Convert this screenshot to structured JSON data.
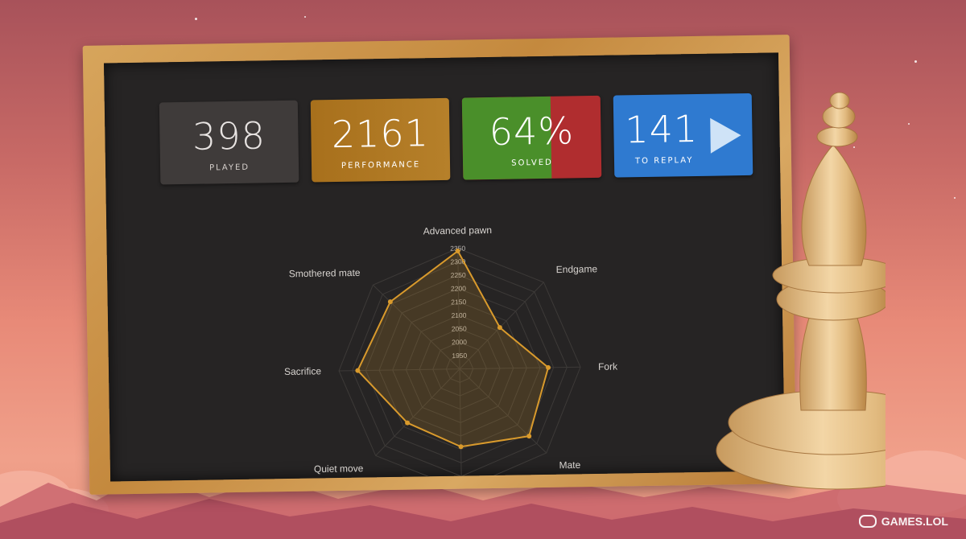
{
  "stats": {
    "played": {
      "value": "398",
      "label": "PLAYED"
    },
    "performance": {
      "value": "2161",
      "label": "PERFORMANCE"
    },
    "solved": {
      "value": "64%",
      "label": "SOLVED",
      "fraction": 0.64
    },
    "replay": {
      "value": "141",
      "label": "TO REPLAY"
    }
  },
  "colors": {
    "played_bg": "#3f3b3a",
    "performance_bg": "#b07828",
    "solved_good": "#4a8f2a",
    "solved_bad": "#b02d2f",
    "replay_bg": "#2f7ad0",
    "radar_line": "#d99a2c"
  },
  "chart_data": {
    "type": "radar",
    "axes": [
      "Advanced pawn",
      "Endgame",
      "Fork",
      "Mate",
      "",
      "Quiet move",
      "Sacrifice",
      "Smothered mate"
    ],
    "ticks": [
      "1950",
      "2000",
      "2050",
      "2100",
      "2150",
      "2200",
      "2250",
      "2300",
      "2350"
    ],
    "range": [
      1900,
      2350
    ],
    "values": [
      2340,
      2115,
      2230,
      2260,
      2190,
      2180,
      2280,
      2260
    ]
  },
  "watermark": {
    "text": "GAMES.LOL",
    "icon": "gamepad-icon"
  }
}
